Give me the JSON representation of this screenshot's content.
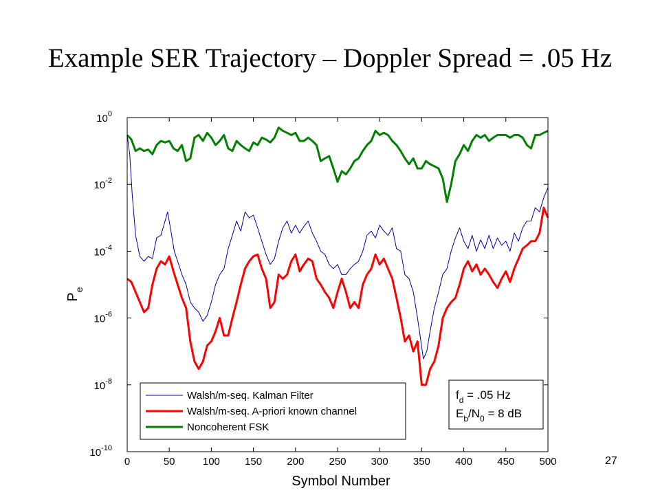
{
  "slide": {
    "title": "Example SER Trajectory – Doppler Spread = .05 Hz",
    "page_number": "27"
  },
  "chart_data": {
    "type": "line",
    "xlabel": "Symbol Number",
    "ylabel": "P",
    "ylabel_sub": "e",
    "xlim": [
      0,
      500
    ],
    "ylim": [
      1e-10,
      1
    ],
    "yscale": "log",
    "xticks": [
      0,
      50,
      100,
      150,
      200,
      250,
      300,
      350,
      400,
      450,
      500
    ],
    "yticks": [
      {
        "value": 1,
        "base": "10",
        "exp": "0"
      },
      {
        "value": 0.01,
        "base": "10",
        "exp": "-2"
      },
      {
        "value": 0.0001,
        "base": "10",
        "exp": "-4"
      },
      {
        "value": 1e-06,
        "base": "10",
        "exp": "-6"
      },
      {
        "value": 1e-08,
        "base": "10",
        "exp": "-8"
      },
      {
        "value": 1e-10,
        "base": "10",
        "exp": "-10"
      }
    ],
    "grid": false,
    "legend_position": "bottom-left",
    "series": [
      {
        "name": "Walsh/m-seq. Kalman Filter",
        "color": "#0000aa",
        "width": 1,
        "x": [
          0,
          3,
          6,
          10,
          15,
          20,
          25,
          30,
          35,
          40,
          45,
          48,
          52,
          56,
          60,
          65,
          70,
          75,
          80,
          85,
          90,
          95,
          100,
          105,
          110,
          115,
          120,
          125,
          130,
          135,
          140,
          145,
          150,
          155,
          160,
          165,
          170,
          175,
          180,
          185,
          190,
          195,
          200,
          205,
          210,
          215,
          220,
          225,
          230,
          235,
          240,
          245,
          250,
          255,
          260,
          265,
          270,
          275,
          280,
          285,
          290,
          295,
          300,
          305,
          310,
          315,
          320,
          325,
          330,
          335,
          340,
          345,
          348,
          352,
          356,
          360,
          365,
          370,
          375,
          380,
          385,
          390,
          395,
          400,
          405,
          410,
          415,
          420,
          425,
          430,
          435,
          440,
          445,
          450,
          455,
          460,
          465,
          470,
          475,
          480,
          485,
          490,
          495,
          500
        ],
        "values": [
          0.3,
          0.08,
          0.005,
          0.0003,
          7e-05,
          5e-05,
          7e-05,
          6e-05,
          0.00025,
          0.0003,
          0.0008,
          0.0015,
          0.0004,
          0.0001,
          5e-05,
          2e-05,
          1e-05,
          3e-06,
          2e-06,
          1.5e-06,
          8e-07,
          1.2e-06,
          3e-06,
          1e-05,
          2e-05,
          3e-05,
          0.00012,
          0.0003,
          0.0008,
          0.0004,
          0.0015,
          0.001,
          0.0012,
          0.0005,
          0.0002,
          8e-05,
          4e-05,
          6e-05,
          0.0002,
          0.0005,
          0.0008,
          0.00035,
          0.0006,
          0.00035,
          0.00055,
          0.0008,
          0.00035,
          0.0002,
          0.0001,
          8e-05,
          4e-05,
          3e-05,
          4e-05,
          2e-05,
          2e-05,
          3e-05,
          4e-05,
          5e-05,
          0.0001,
          0.0003,
          0.0004,
          0.00025,
          0.0006,
          0.0004,
          0.0003,
          0.0005,
          0.00012,
          0.0001,
          2e-05,
          1.5e-05,
          6e-06,
          1e-06,
          3e-07,
          6e-08,
          1e-07,
          4e-07,
          2e-06,
          6e-06,
          2e-05,
          3e-05,
          0.0001,
          0.00025,
          0.0005,
          0.0002,
          0.00012,
          0.0003,
          0.0001,
          0.00022,
          0.00012,
          0.0003,
          0.00012,
          0.00025,
          0.00015,
          0.0002,
          0.0001,
          0.00035,
          0.0002,
          0.0005,
          0.0008,
          0.0008,
          0.002,
          0.0015,
          0.004,
          0.008
        ]
      },
      {
        "name": "Walsh/m-seq. A-priori known channel",
        "color": "#ff0000",
        "width": 3,
        "x": [
          0,
          5,
          10,
          15,
          20,
          25,
          30,
          35,
          40,
          45,
          50,
          55,
          60,
          65,
          70,
          75,
          80,
          85,
          90,
          95,
          100,
          105,
          110,
          115,
          120,
          125,
          130,
          135,
          140,
          145,
          150,
          155,
          160,
          165,
          170,
          175,
          180,
          185,
          190,
          195,
          200,
          205,
          210,
          215,
          220,
          225,
          230,
          235,
          240,
          245,
          250,
          255,
          260,
          265,
          270,
          275,
          280,
          285,
          290,
          295,
          300,
          305,
          310,
          315,
          320,
          325,
          330,
          335,
          340,
          345,
          350,
          355,
          360,
          365,
          370,
          375,
          380,
          385,
          390,
          395,
          400,
          405,
          410,
          415,
          420,
          425,
          430,
          435,
          440,
          445,
          450,
          455,
          460,
          465,
          470,
          475,
          480,
          485,
          490,
          495,
          500
        ],
        "values": [
          1.5e-05,
          1.2e-05,
          6e-06,
          3e-06,
          1.5e-06,
          2e-06,
          1e-05,
          3e-05,
          5e-05,
          4e-05,
          7e-05,
          2.5e-05,
          1e-05,
          4e-06,
          2e-06,
          2e-07,
          5e-08,
          3e-08,
          5e-08,
          1.5e-07,
          2e-07,
          4e-07,
          1e-06,
          3e-07,
          3e-07,
          1e-06,
          3e-06,
          1e-05,
          3e-05,
          5e-05,
          7e-05,
          8e-05,
          3e-05,
          1.5e-05,
          2e-06,
          3e-06,
          2e-05,
          1.5e-05,
          2e-05,
          5e-05,
          8e-05,
          2.5e-05,
          4e-05,
          6e-05,
          5e-05,
          1.5e-05,
          1e-05,
          6e-06,
          4e-06,
          2e-06,
          6e-06,
          1.5e-05,
          6e-06,
          2e-06,
          3e-06,
          2e-06,
          1e-05,
          2e-05,
          3e-05,
          8e-05,
          4e-05,
          6e-05,
          3e-05,
          1.5e-05,
          4e-06,
          1e-06,
          2e-07,
          3e-07,
          1e-07,
          2e-07,
          1e-08,
          1e-08,
          3e-08,
          5e-08,
          1.5e-07,
          1e-06,
          2e-06,
          3e-06,
          4e-06,
          1e-05,
          3e-05,
          5e-05,
          2.5e-05,
          4e-05,
          2e-05,
          3e-05,
          2e-05,
          1.2e-05,
          8e-06,
          1.5e-05,
          2.5e-05,
          1.2e-05,
          3e-05,
          6e-05,
          0.00012,
          0.00015,
          0.0002,
          0.0002,
          0.00035,
          0.002,
          0.001
        ]
      },
      {
        "name": "Noncoherent FSK",
        "color": "#008000",
        "width": 3,
        "x": [
          0,
          5,
          10,
          15,
          20,
          25,
          30,
          35,
          40,
          45,
          50,
          55,
          60,
          65,
          70,
          75,
          80,
          85,
          90,
          95,
          100,
          105,
          110,
          115,
          120,
          125,
          130,
          135,
          140,
          145,
          150,
          155,
          160,
          165,
          170,
          175,
          180,
          185,
          190,
          195,
          200,
          205,
          210,
          215,
          220,
          225,
          230,
          235,
          240,
          245,
          250,
          255,
          260,
          265,
          270,
          275,
          280,
          285,
          290,
          295,
          300,
          305,
          310,
          315,
          320,
          325,
          330,
          335,
          340,
          345,
          350,
          355,
          360,
          365,
          370,
          375,
          380,
          385,
          390,
          395,
          400,
          405,
          410,
          415,
          420,
          425,
          430,
          435,
          440,
          445,
          450,
          455,
          460,
          465,
          470,
          475,
          480,
          485,
          490,
          495,
          500
        ],
        "values": [
          0.3,
          0.22,
          0.1,
          0.12,
          0.1,
          0.11,
          0.08,
          0.15,
          0.2,
          0.18,
          0.2,
          0.12,
          0.1,
          0.15,
          0.05,
          0.06,
          0.25,
          0.3,
          0.2,
          0.35,
          0.25,
          0.15,
          0.2,
          0.3,
          0.12,
          0.1,
          0.2,
          0.15,
          0.12,
          0.1,
          0.18,
          0.15,
          0.25,
          0.22,
          0.18,
          0.25,
          0.5,
          0.4,
          0.35,
          0.3,
          0.35,
          0.2,
          0.2,
          0.25,
          0.2,
          0.15,
          0.05,
          0.06,
          0.07,
          0.03,
          0.012,
          0.025,
          0.02,
          0.03,
          0.05,
          0.06,
          0.1,
          0.15,
          0.2,
          0.4,
          0.3,
          0.35,
          0.3,
          0.2,
          0.15,
          0.1,
          0.06,
          0.04,
          0.06,
          0.03,
          0.03,
          0.05,
          0.04,
          0.035,
          0.03,
          0.015,
          0.003,
          0.01,
          0.05,
          0.08,
          0.15,
          0.1,
          0.2,
          0.3,
          0.25,
          0.3,
          0.2,
          0.25,
          0.3,
          0.3,
          0.3,
          0.25,
          0.3,
          0.3,
          0.25,
          0.15,
          0.12,
          0.3,
          0.3,
          0.35,
          0.4
        ]
      }
    ],
    "annotation": {
      "f_main": "f",
      "f_sub": "d",
      "f_rest": " = .05 Hz",
      "e_main": "E",
      "e_sub": "b",
      "e_mid": "/N",
      "e_sub2": "0",
      "e_rest": " = 8 dB"
    }
  }
}
